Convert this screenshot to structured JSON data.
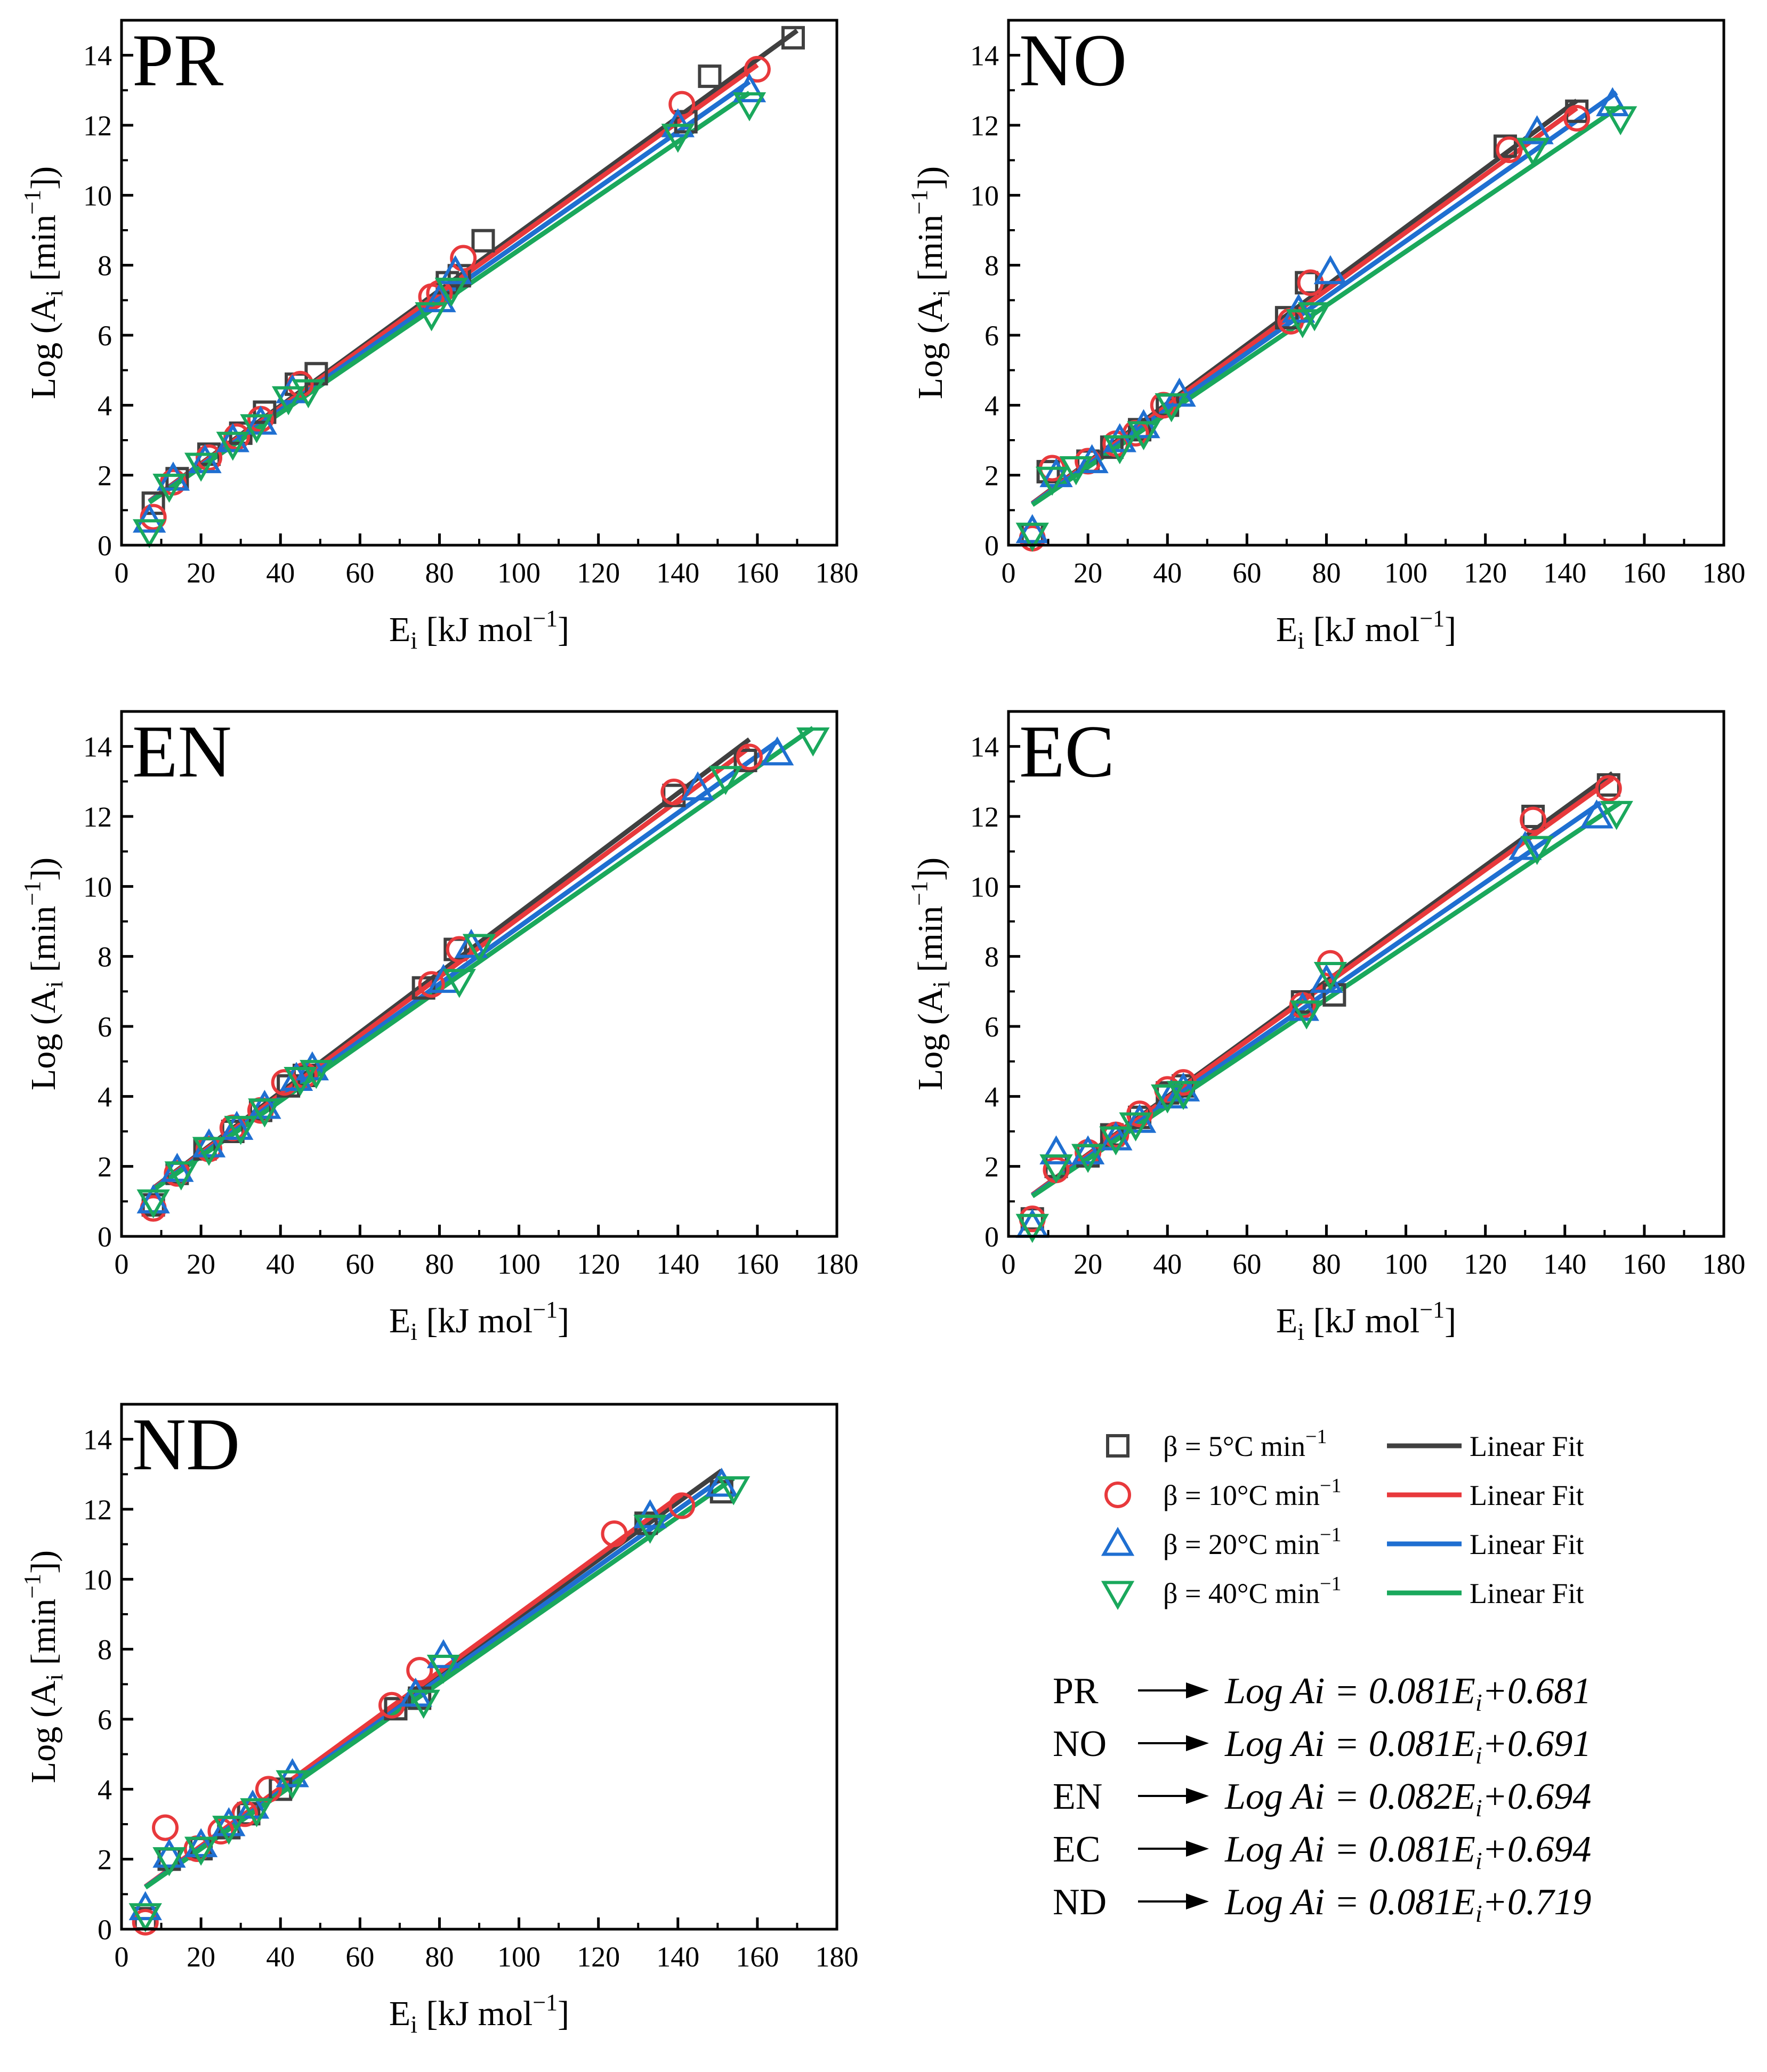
{
  "chart_data": {
    "type": "scatter",
    "xlabel": "E_i [kJ mol^-1]",
    "ylabel": "Log (A_i [min^-1])",
    "xlim": [
      0,
      180
    ],
    "ylim": [
      0,
      15
    ],
    "x_ticks": [
      "0",
      "20",
      "40",
      "60",
      "80",
      "100",
      "120",
      "140",
      "160",
      "180"
    ],
    "y_ticks": [
      "0",
      "2",
      "4",
      "6",
      "8",
      "10",
      "12",
      "14"
    ],
    "series_names": [
      "β = 5°C min⁻¹",
      "β = 10°C min⁻¹",
      "β = 20°C min⁻¹",
      "β = 40°C min⁻¹"
    ],
    "fit_label": "Linear Fit",
    "colors": {
      "s5": "#404040",
      "s10": "#e8393c",
      "s20": "#1f6fd1",
      "s40": "#1aa85c"
    },
    "panels": [
      {
        "label": "PR",
        "series": [
          {
            "name": "β = 5°C min⁻¹",
            "x": [
              8,
              14,
              22,
              30,
              36,
              44,
              49,
              82,
              85,
              91,
              142,
              148,
              169
            ],
            "y": [
              1.2,
              1.9,
              2.6,
              3.2,
              3.8,
              4.6,
              4.9,
              7.5,
              7.7,
              8.7,
              12.1,
              13.4,
              14.5
            ],
            "fit": [
              0.681,
              0.0825
            ],
            "fit_range": [
              7,
              170
            ]
          },
          {
            "name": "β = 10°C min⁻¹",
            "x": [
              8,
              13,
              22,
              29,
              35,
              45,
              78,
              80,
              86,
              141,
              160
            ],
            "y": [
              0.8,
              1.8,
              2.5,
              3.1,
              3.6,
              4.6,
              7.1,
              7.2,
              8.2,
              12.6,
              13.6
            ],
            "fit": [
              0.681,
              0.0815
            ],
            "fit_range": [
              7,
              160
            ]
          },
          {
            "name": "β = 20°C min⁻¹",
            "x": [
              7,
              13,
              21,
              28,
              35,
              43,
              80,
              84,
              140,
              158
            ],
            "y": [
              0.7,
              1.9,
              2.4,
              3.0,
              3.5,
              4.4,
              7.0,
              7.8,
              12.0,
              13.0
            ],
            "fit": [
              0.681,
              0.0795
            ],
            "fit_range": [
              7,
              158
            ]
          },
          {
            "name": "β = 40°C min⁻¹",
            "x": [
              7,
              12,
              20,
              28,
              34,
              42,
              47,
              78,
              83,
              140,
              158
            ],
            "y": [
              0.4,
              1.7,
              2.3,
              2.9,
              3.4,
              4.2,
              4.4,
              6.6,
              7.3,
              11.7,
              12.6
            ],
            "fit": [
              0.681,
              0.0775
            ],
            "fit_range": [
              7,
              158
            ]
          }
        ]
      },
      {
        "label": "NO",
        "series": [
          {
            "name": "β = 5°C min⁻¹",
            "x": [
              6,
              10,
              20,
              26,
              33,
              40,
              70,
              75,
              125,
              143
            ],
            "y": [
              0.3,
              2.1,
              2.4,
              2.8,
              3.3,
              4.0,
              6.5,
              7.5,
              11.4,
              12.4
            ],
            "fit": [
              0.691,
              0.084
            ],
            "fit_range": [
              6,
              143
            ]
          },
          {
            "name": "β = 10°C min⁻¹",
            "x": [
              6,
              11,
              20,
              27,
              32,
              39,
              71,
              76,
              126,
              143
            ],
            "y": [
              0.2,
              2.2,
              2.4,
              2.9,
              3.2,
              4.0,
              6.4,
              7.5,
              11.3,
              12.2
            ],
            "fit": [
              0.691,
              0.0825
            ],
            "fit_range": [
              6,
              143
            ]
          },
          {
            "name": "β = 20°C min⁻¹",
            "x": [
              6,
              12,
              21,
              28,
              34,
              43,
              73,
              81,
              133,
              152
            ],
            "y": [
              0.4,
              2.0,
              2.4,
              3.0,
              3.4,
              4.3,
              6.7,
              7.8,
              11.8,
              12.6
            ],
            "fit": [
              0.691,
              0.08
            ],
            "fit_range": [
              6,
              153
            ]
          },
          {
            "name": "β = 40°C min⁻¹",
            "x": [
              6,
              11,
              17,
              28,
              34,
              41,
              74,
              77,
              132,
              154
            ],
            "y": [
              0.3,
              1.9,
              2.2,
              2.8,
              3.2,
              4.0,
              6.4,
              6.6,
              11.3,
              12.2
            ],
            "fit": [
              0.691,
              0.077
            ],
            "fit_range": [
              6,
              154
            ]
          }
        ]
      },
      {
        "label": "EN",
        "series": [
          {
            "name": "β = 5°C min⁻¹",
            "x": [
              8,
              14,
              21,
              28,
              35,
              42,
              46,
              76,
              84,
              139,
              157
            ],
            "y": [
              0.9,
              1.8,
              2.5,
              3.0,
              3.6,
              4.3,
              4.6,
              7.1,
              8.2,
              12.6,
              13.6
            ],
            "fit": [
              0.694,
              0.0855
            ],
            "fit_range": [
              8,
              158
            ]
          },
          {
            "name": "β = 10°C min⁻¹",
            "x": [
              8,
              14,
              22,
              28,
              35,
              41,
              46,
              78,
              85,
              139,
              158
            ],
            "y": [
              0.8,
              1.8,
              2.5,
              3.1,
              3.6,
              4.4,
              4.6,
              7.2,
              8.2,
              12.7,
              13.7
            ],
            "fit": [
              0.694,
              0.084
            ],
            "fit_range": [
              8,
              158
            ]
          },
          {
            "name": "β = 20°C min⁻¹",
            "x": [
              8,
              14,
              22,
              29,
              36,
              44,
              48,
              81,
              88,
              145,
              165
            ],
            "y": [
              1.0,
              1.9,
              2.6,
              3.1,
              3.7,
              4.5,
              4.8,
              7.3,
              8.3,
              12.8,
              13.8
            ],
            "fit": [
              0.694,
              0.0815
            ],
            "fit_range": [
              8,
              165
            ]
          },
          {
            "name": "β = 40°C min⁻¹",
            "x": [
              8,
              15,
              22,
              30,
              36,
              45,
              49,
              85,
              90,
              152,
              174
            ],
            "y": [
              1.0,
              1.8,
              2.5,
              3.1,
              3.6,
              4.5,
              4.7,
              7.3,
              8.3,
              13.1,
              14.2
            ],
            "fit": [
              0.694,
              0.0795
            ],
            "fit_range": [
              8,
              174
            ]
          }
        ]
      },
      {
        "label": "EC",
        "series": [
          {
            "name": "β = 5°C min⁻¹",
            "x": [
              6,
              12,
              20,
              26,
              33,
              40,
              44,
              74,
              82,
              132,
              151
            ],
            "y": [
              0.5,
              2.0,
              2.3,
              2.9,
              3.4,
              4.1,
              4.3,
              6.7,
              6.9,
              12.0,
              12.9
            ],
            "fit": [
              0.694,
              0.0825
            ],
            "fit_range": [
              6,
              152
            ]
          },
          {
            "name": "β = 10°C min⁻¹",
            "x": [
              6,
              12,
              20,
              27,
              33,
              40,
              44,
              74,
              81,
              132,
              151
            ],
            "y": [
              0.5,
              1.9,
              2.4,
              2.9,
              3.5,
              4.2,
              4.4,
              6.6,
              7.8,
              11.9,
              12.8
            ],
            "fit": [
              0.694,
              0.0815
            ],
            "fit_range": [
              6,
              152
            ]
          },
          {
            "name": "β = 20°C min⁻¹",
            "x": [
              6,
              12,
              20,
              27,
              33,
              41,
              44,
              74,
              80,
              130,
              148
            ],
            "y": [
              0.3,
              2.4,
              2.4,
              2.8,
              3.3,
              4.0,
              4.2,
              6.5,
              7.3,
              11.1,
              12.0
            ],
            "fit": [
              0.694,
              0.0785
            ],
            "fit_range": [
              6,
              149
            ]
          },
          {
            "name": "β = 40°C min⁻¹",
            "x": [
              6,
              12,
              20,
              27,
              32,
              40,
              44,
              75,
              81,
              133,
              153
            ],
            "y": [
              0.3,
              2.0,
              2.3,
              2.8,
              3.2,
              4.0,
              4.1,
              6.4,
              7.5,
              11.1,
              12.1
            ],
            "fit": [
              0.694,
              0.076
            ],
            "fit_range": [
              6,
              154
            ]
          }
        ]
      },
      {
        "label": "ND",
        "series": [
          {
            "name": "β = 5°C min⁻¹",
            "x": [
              6,
              12,
              20,
              27,
              32,
              40,
              69,
              75,
              132,
              151
            ],
            "y": [
              0.3,
              2.0,
              2.3,
              2.9,
              3.3,
              4.0,
              6.3,
              6.6,
              11.6,
              12.5
            ],
            "fit": [
              0.719,
              0.082
            ],
            "fit_range": [
              6,
              151
            ]
          },
          {
            "name": "β = 10°C min⁻¹",
            "x": [
              6,
              11,
              19,
              25,
              31,
              37,
              68,
              75,
              124,
              141
            ],
            "y": [
              0.2,
              2.9,
              2.3,
              2.8,
              3.3,
              4.0,
              6.4,
              7.4,
              11.3,
              12.1
            ],
            "fit": [
              0.719,
              0.083
            ],
            "fit_range": [
              6,
              141
            ]
          },
          {
            "name": "β = 20°C min⁻¹",
            "x": [
              6,
              12,
              20,
              27,
              33,
              43,
              74,
              81,
              133,
              151
            ],
            "y": [
              0.6,
              2.1,
              2.4,
              3.0,
              3.5,
              4.4,
              6.7,
              7.8,
              11.8,
              12.7
            ],
            "fit": [
              0.719,
              0.0805
            ],
            "fit_range": [
              6,
              151
            ]
          },
          {
            "name": "β = 40°C min⁻¹",
            "x": [
              6,
              12,
              20,
              27,
              34,
              43,
              76,
              81,
              133,
              154
            ],
            "y": [
              0.4,
              2.0,
              2.3,
              2.9,
              3.4,
              4.2,
              6.5,
              7.5,
              11.5,
              12.6
            ],
            "fit": [
              0.719,
              0.079
            ],
            "fit_range": [
              6,
              154
            ]
          }
        ]
      }
    ]
  },
  "legend": [
    {
      "label": "β = 5°C min",
      "sup": "−1",
      "fit_label": "Linear Fit"
    },
    {
      "label": "β = 10°C min",
      "sup": "−1",
      "fit_label": "Linear Fit"
    },
    {
      "label": "β = 20°C min",
      "sup": "−1",
      "fit_label": "Linear Fit"
    },
    {
      "label": "β = 40°C min",
      "sup": "−1",
      "fit_label": "Linear Fit"
    }
  ],
  "equations": [
    {
      "label": "PR",
      "pre": "Log Ai = 0.081E",
      "sub": "i",
      "post": "+0.681"
    },
    {
      "label": "NO",
      "pre": "Log Ai = 0.081E",
      "sub": "i",
      "post": "+0.691"
    },
    {
      "label": "EN",
      "pre": "Log Ai = 0.082E",
      "sub": "i",
      "post": "+0.694"
    },
    {
      "label": "EC",
      "pre": "Log Ai = 0.081E",
      "sub": "i",
      "post": "+0.694"
    },
    {
      "label": "ND",
      "pre": "Log Ai = 0.081E",
      "sub": "i",
      "post": "+0.719"
    }
  ],
  "axis_text": {
    "x_main": "E",
    "x_sub": "i",
    "x_unit": " [kJ mol",
    "x_sup": "−1",
    "x_close": "]",
    "y_main": "Log (A",
    "y_sub": "i",
    "y_unit": " [min",
    "y_sup": "−1",
    "y_close": "])"
  }
}
